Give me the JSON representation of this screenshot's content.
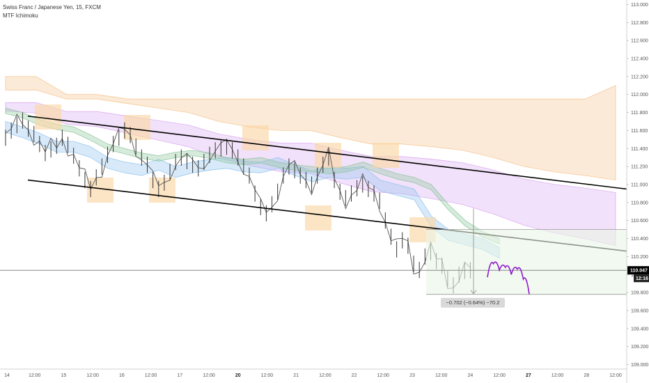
{
  "header": {
    "symbol_line": "Swiss Franc / Japanese Yen, 15, FXCM",
    "indicator_line": "MTF Ichimoku"
  },
  "colors": {
    "price_line": "#555555",
    "ichimoku_fast": "#90c2ee",
    "ichimoku_mid": "#8cc79a",
    "ichimoku_slow_orange": "#f5c48e",
    "ichimoku_slow_purple": "#d9a8f0",
    "highlight_box": "#fbd7a6",
    "trend_line": "#000000",
    "projection": "#8e1ccf",
    "price_tag_bg": "#000000",
    "measure_zone": "#eaf5e6"
  },
  "chart_data": {
    "type": "line",
    "title": "Swiss Franc / Japanese Yen, 15, FXCM",
    "ylim": [
      108.95,
      113.05
    ],
    "x_ticks": [
      "14",
      "12:00",
      "15",
      "12:00",
      "16",
      "12:00",
      "17",
      "12:00",
      "20",
      "12:00",
      "21",
      "12:00",
      "22",
      "12:00",
      "23",
      "12:00",
      "24",
      "12:00",
      "27",
      "12:00",
      "28",
      "12:00"
    ],
    "x_ticks_bold": [
      "20",
      "27"
    ],
    "y_ticks": [
      113.0,
      112.8,
      112.6,
      112.4,
      112.2,
      112.0,
      111.8,
      111.6,
      111.4,
      111.2,
      111.0,
      110.8,
      110.6,
      110.4,
      110.2,
      110.0,
      109.8,
      109.6,
      109.4,
      109.2,
      109.0
    ],
    "y_tick_labels": [
      "113.000",
      "112.800",
      "112.600",
      "112.400",
      "112.200",
      "112.000",
      "111.800",
      "111.600",
      "111.400",
      "111.200",
      "111.000",
      "110.800",
      "110.600",
      "110.400",
      "110.200",
      "110.000",
      "109.800",
      "109.600",
      "109.400",
      "109.200",
      "109.000"
    ],
    "last_price": 110.047,
    "last_price_label": "110.047",
    "countdown_label": "12:16",
    "measure_label": "−0.702 (−0.64%) −70.2",
    "series": [
      {
        "values": [
          111.52,
          111.6,
          111.66,
          111.71,
          111.62,
          111.56,
          111.45,
          111.35,
          111.39,
          111.43,
          111.52,
          111.44,
          111.32,
          111.18,
          111.05,
          110.95,
          111.08,
          111.2,
          111.33,
          111.45,
          111.52,
          111.6,
          111.55,
          111.42,
          111.3,
          111.22,
          111.05,
          110.95,
          111.02,
          111.14,
          111.25,
          111.3,
          111.26,
          111.22,
          111.18,
          111.25,
          111.33,
          111.38,
          111.4,
          111.42,
          111.38,
          111.3,
          111.2,
          111.1,
          110.9,
          110.75,
          110.68,
          110.78,
          110.92,
          111.1,
          111.2,
          111.16,
          111.1,
          111.05,
          111.0,
          111.1,
          111.22,
          111.3,
          111.05,
          110.92,
          110.85,
          110.9,
          110.96,
          111.0,
          110.95,
          110.9,
          110.82,
          110.6,
          110.42,
          110.28,
          110.38,
          110.32,
          110.12,
          110.05,
          110.2,
          110.25,
          110.15,
          110.1,
          109.95,
          109.88,
          110.0,
          110.04,
          110.047
        ]
      },
      {
        "values": [
          111.7,
          111.64,
          111.57,
          111.48,
          111.48,
          111.42,
          111.3,
          111.25,
          111.22,
          111.28,
          111.2,
          111.25,
          111.28,
          111.3,
          111.26,
          111.25,
          111.3,
          111.22,
          111.15,
          111.2,
          111.18,
          111.2,
          111.05,
          111.0,
          110.95,
          110.65,
          110.5,
          110.45,
          110.4,
          110.3
        ]
      },
      {
        "values": [
          111.85,
          111.8,
          111.72,
          111.67,
          111.64,
          111.55,
          111.45,
          111.4,
          111.35,
          111.32,
          111.36,
          111.38,
          111.35,
          111.3,
          111.28,
          111.3,
          111.25,
          111.22,
          111.2,
          111.18,
          111.2,
          111.25,
          111.18,
          111.12,
          111.08,
          111.0,
          110.78,
          110.6,
          110.48,
          110.4
        ]
      },
      {
        "values": [
          112.2,
          112.2,
          112.0,
          112.0,
          111.95,
          111.95,
          111.95,
          111.95,
          111.95,
          111.95,
          111.95,
          111.95,
          111.95,
          111.95,
          111.95,
          111.95,
          111.95,
          111.95,
          111.95,
          111.95,
          112.1
        ]
      },
      {
        "values": [
          112.05,
          112.05,
          111.95,
          111.95,
          111.9,
          111.85,
          111.8,
          111.7,
          111.64,
          111.6,
          111.6,
          111.52,
          111.45,
          111.45,
          111.42,
          111.38,
          111.3,
          111.2,
          111.14,
          111.1,
          111.05
        ]
      }
    ],
    "annotations": {
      "trend_lines": [
        {
          "from": [
            "14",
            111.76
          ],
          "to": [
            "28",
            110.95
          ]
        },
        {
          "from": [
            "14",
            111.05
          ],
          "to": [
            "28",
            110.26
          ]
        }
      ],
      "projection_values": [
        109.97,
        110.12,
        110.05,
        110.08,
        110.0,
        110.06,
        109.95,
        109.78
      ]
    }
  }
}
